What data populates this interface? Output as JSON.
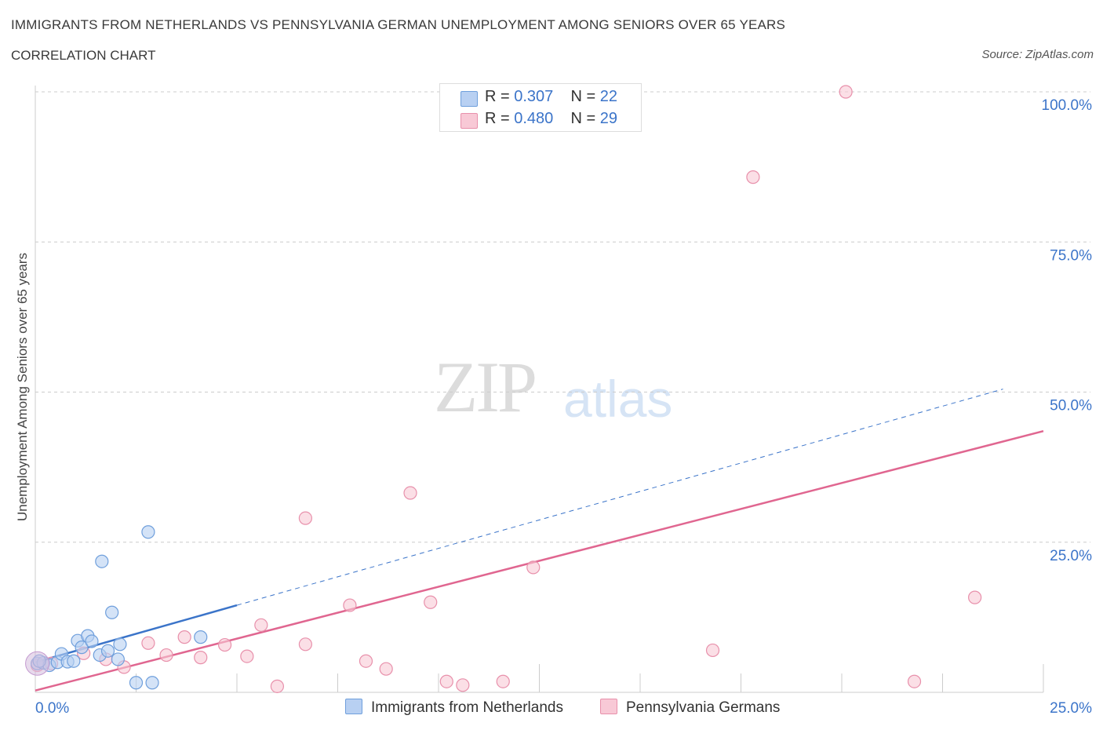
{
  "header": {
    "title": "IMMIGRANTS FROM NETHERLANDS VS PENNSYLVANIA GERMAN UNEMPLOYMENT AMONG SENIORS OVER 65 YEARS",
    "subtitle": "CORRELATION CHART",
    "source": "Source: ZipAtlas.com"
  },
  "watermark": {
    "zip": "ZIP",
    "atlas": "atlas"
  },
  "legend": {
    "r_label": "R =",
    "n_label": "N =",
    "series1": {
      "r": "0.307",
      "n": "22"
    },
    "series2": {
      "r": "0.480",
      "n": "29"
    }
  },
  "colors": {
    "series1_fill": "#b8d0f2",
    "series1_stroke": "#6f9fdc",
    "series1_line": "#3b74c9",
    "series2_fill": "#f8c9d6",
    "series2_stroke": "#e890ab",
    "series2_line": "#e06690",
    "tick_label": "#3b74c9",
    "grid": "#cccccc"
  },
  "chart_data": {
    "type": "scatter",
    "title": "IMMIGRANTS FROM NETHERLANDS VS PENNSYLVANIA GERMAN UNEMPLOYMENT AMONG SENIORS OVER 65 YEARS",
    "xlabel": "",
    "ylabel": "Unemployment Among Seniors over 65 years",
    "xlim": [
      0,
      25
    ],
    "ylim": [
      0,
      100
    ],
    "x_tick_labels": [
      "0.0%",
      "25.0%"
    ],
    "y_ticks": [
      25,
      50,
      75,
      100
    ],
    "y_tick_labels": [
      "25.0%",
      "50.0%",
      "75.0%",
      "100.0%"
    ],
    "grid": true,
    "legend_position": "top-center",
    "series": [
      {
        "name": "Immigrants from Netherlands",
        "r": 0.307,
        "n": 22,
        "points": [
          {
            "x": 0.05,
            "y": 4.8
          },
          {
            "x": 0.2,
            "y": 4.9
          },
          {
            "x": 0.35,
            "y": 4.5
          },
          {
            "x": 0.55,
            "y": 5.0
          },
          {
            "x": 0.65,
            "y": 6.4
          },
          {
            "x": 0.8,
            "y": 5.1
          },
          {
            "x": 0.95,
            "y": 5.2
          },
          {
            "x": 1.05,
            "y": 8.6
          },
          {
            "x": 1.15,
            "y": 7.5
          },
          {
            "x": 1.3,
            "y": 9.4
          },
          {
            "x": 1.4,
            "y": 8.5
          },
          {
            "x": 1.6,
            "y": 6.2
          },
          {
            "x": 1.65,
            "y": 21.8
          },
          {
            "x": 1.8,
            "y": 6.9
          },
          {
            "x": 1.9,
            "y": 13.3
          },
          {
            "x": 2.05,
            "y": 5.5
          },
          {
            "x": 2.1,
            "y": 8.0
          },
          {
            "x": 2.5,
            "y": 1.6
          },
          {
            "x": 2.8,
            "y": 26.7
          },
          {
            "x": 2.9,
            "y": 1.6
          },
          {
            "x": 4.1,
            "y": 9.2
          },
          {
            "x": 0.1,
            "y": 5.2
          }
        ],
        "trend": {
          "x0": 0,
          "y0": 5.0,
          "x1": 5.0,
          "y1": 14.5,
          "extended_x1": 24.0,
          "extended_y1": 50.5
        }
      },
      {
        "name": "Pennsylvania Germans",
        "r": 0.48,
        "n": 29,
        "points": [
          {
            "x": 0.05,
            "y": 4.5
          },
          {
            "x": 1.2,
            "y": 6.5
          },
          {
            "x": 1.75,
            "y": 5.5
          },
          {
            "x": 2.2,
            "y": 4.2
          },
          {
            "x": 2.8,
            "y": 8.2
          },
          {
            "x": 3.25,
            "y": 6.2
          },
          {
            "x": 3.7,
            "y": 9.2
          },
          {
            "x": 4.1,
            "y": 5.8
          },
          {
            "x": 4.7,
            "y": 7.9
          },
          {
            "x": 5.25,
            "y": 6.0
          },
          {
            "x": 5.6,
            "y": 11.2
          },
          {
            "x": 6.0,
            "y": 1.0
          },
          {
            "x": 6.7,
            "y": 29.0
          },
          {
            "x": 6.7,
            "y": 8.0
          },
          {
            "x": 7.8,
            "y": 14.5
          },
          {
            "x": 8.2,
            "y": 5.2
          },
          {
            "x": 8.7,
            "y": 3.9
          },
          {
            "x": 9.3,
            "y": 33.2
          },
          {
            "x": 9.8,
            "y": 15.0
          },
          {
            "x": 10.2,
            "y": 1.8
          },
          {
            "x": 10.6,
            "y": 1.2
          },
          {
            "x": 11.6,
            "y": 1.8
          },
          {
            "x": 12.35,
            "y": 20.8
          },
          {
            "x": 16.8,
            "y": 7.0
          },
          {
            "x": 17.8,
            "y": 85.8
          },
          {
            "x": 20.1,
            "y": 100.0
          },
          {
            "x": 21.8,
            "y": 1.8
          },
          {
            "x": 23.3,
            "y": 15.8
          },
          {
            "x": 0.4,
            "y": 4.8
          }
        ],
        "trend": {
          "x0": 0,
          "y0": 0.3,
          "x1": 25.0,
          "y1": 43.5
        }
      }
    ]
  },
  "bottom_legend": {
    "series1": "Immigrants from Netherlands",
    "series2": "Pennsylvania Germans"
  }
}
